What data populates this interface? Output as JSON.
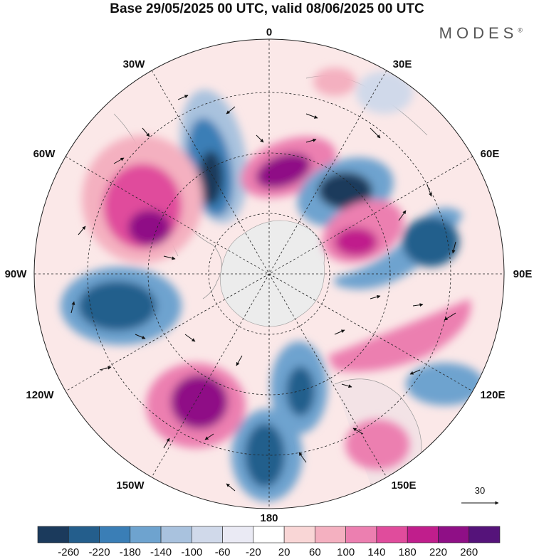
{
  "title": "Base 29/05/2025 00 UTC, valid 08/06/2025 00 UTC",
  "brand": "MODES",
  "brand_mark": "®",
  "meridian_labels": {
    "lon_0": "0",
    "lon_30e": "30E",
    "lon_60e": "60E",
    "lon_90e": "90E",
    "lon_120e": "120E",
    "lon_150e": "150E",
    "lon_180": "180",
    "lon_150w": "150W",
    "lon_120w": "120W",
    "lon_90w": "90W",
    "lon_60w": "60W",
    "lon_30w": "30W"
  },
  "reference_vector_label": "30",
  "colorbar": {
    "colors": [
      "#1b3a5c",
      "#245e8c",
      "#3a7eb6",
      "#6ea3cf",
      "#a9c2de",
      "#d0d9ea",
      "#eaeaf4",
      "#ffffff",
      "#f9d6d6",
      "#f4b0c0",
      "#ec7fb0",
      "#e04c9c",
      "#c01e8c",
      "#8f0f86",
      "#55137a"
    ],
    "ticks": [
      "-260",
      "-220",
      "-180",
      "-140",
      "-100",
      "-60",
      "-20",
      "20",
      "60",
      "100",
      "140",
      "180",
      "220",
      "260"
    ]
  },
  "colors": {
    "land": "#e9e9e9",
    "antarctica": "#ececec"
  }
}
